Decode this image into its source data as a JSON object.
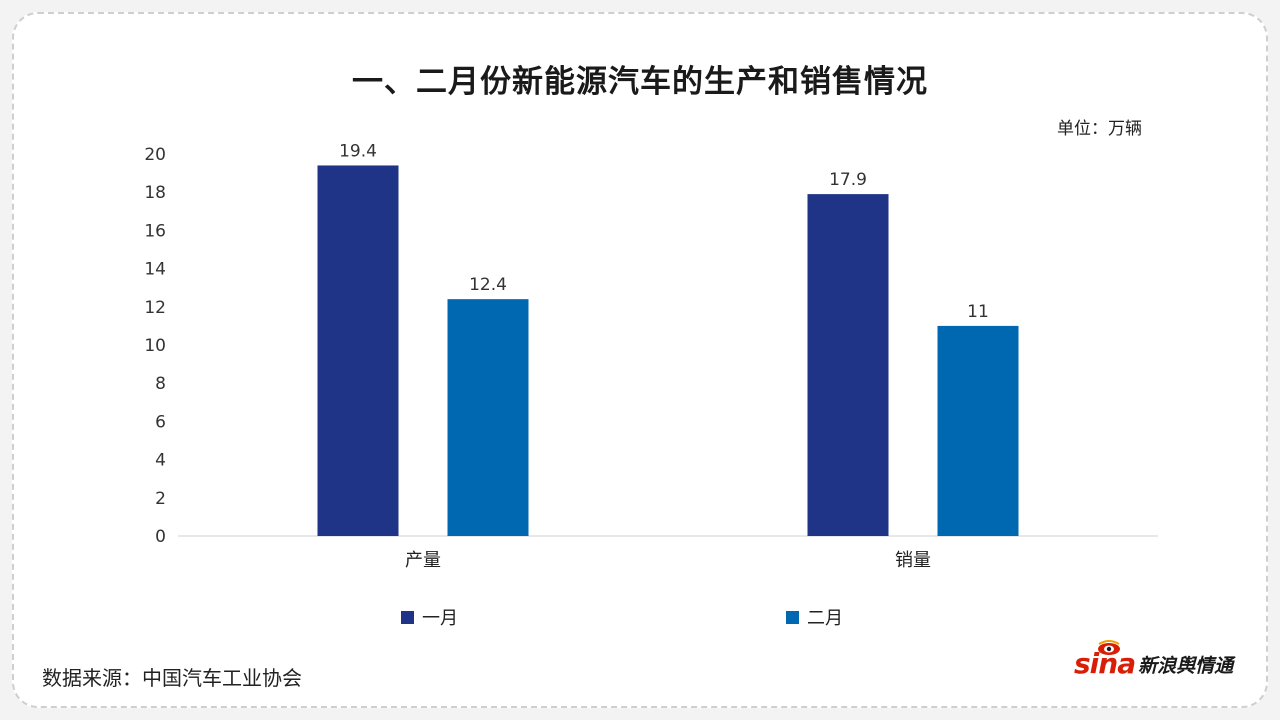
{
  "title": "一、二月份新能源汽车的生产和销售情况",
  "unit_label": "单位：万辆",
  "source": "数据来源：中国汽车工业协会",
  "logo": {
    "mark": "sina",
    "text": "新浪舆情通"
  },
  "colors": {
    "series1": "#1f3486",
    "series2": "#0067b1",
    "axis": "#d0d0d0"
  },
  "chart_data": {
    "type": "bar",
    "categories": [
      "产量",
      "销量"
    ],
    "series": [
      {
        "name": "一月",
        "values": [
          19.4,
          17.9
        ]
      },
      {
        "name": "二月",
        "values": [
          12.4,
          11
        ]
      }
    ],
    "ylim": [
      0,
      20
    ],
    "yticks": [
      0,
      2,
      4,
      6,
      8,
      10,
      12,
      14,
      16,
      18,
      20
    ],
    "data_labels": [
      [
        "19.4",
        "17.9"
      ],
      [
        "12.4",
        "11"
      ]
    ],
    "legend_position": "bottom",
    "grid": false
  }
}
